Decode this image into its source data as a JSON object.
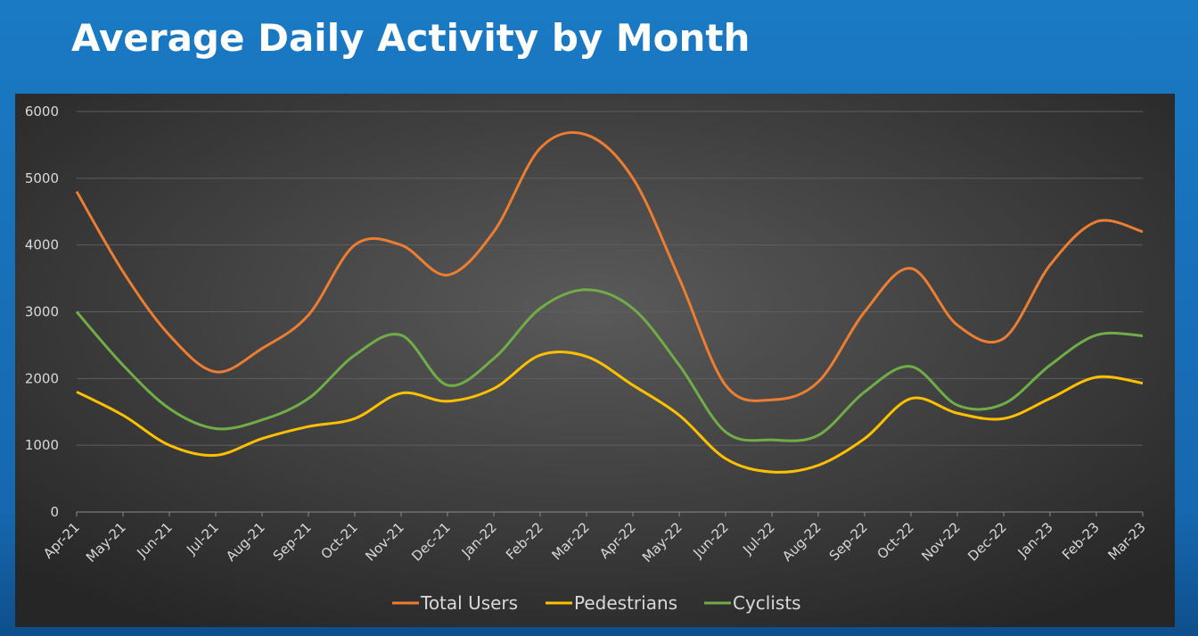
{
  "chart_data": {
    "type": "line",
    "title": "Average Daily Activity by Month",
    "categories": [
      "Apr-21",
      "May-21",
      "Jun-21",
      "Jul-21",
      "Aug-21",
      "Sep-21",
      "Oct-21",
      "Nov-21",
      "Dec-21",
      "Jan-22",
      "Feb-22",
      "Mar-22",
      "Apr-22",
      "May-22",
      "Jun-22",
      "Jul-22",
      "Aug-22",
      "Sep-22",
      "Oct-22",
      "Nov-22",
      "Dec-22",
      "Jan-23",
      "Feb-23",
      "Mar-23"
    ],
    "series": [
      {
        "name": "Total Users",
        "color": "#ed7d31",
        "values": [
          4800,
          3600,
          2650,
          2100,
          2450,
          2950,
          4000,
          4000,
          3550,
          4200,
          5450,
          5650,
          5000,
          3500,
          1900,
          1680,
          1950,
          3000,
          3650,
          2800,
          2600,
          3700,
          4350,
          4200
        ]
      },
      {
        "name": "Pedestrians",
        "color": "#ffc000",
        "values": [
          1800,
          1450,
          1000,
          850,
          1100,
          1280,
          1400,
          1780,
          1660,
          1850,
          2350,
          2330,
          1900,
          1450,
          800,
          600,
          700,
          1100,
          1700,
          1480,
          1400,
          1700,
          2020,
          1930
        ]
      },
      {
        "name": "Cyclists",
        "color": "#70ad47",
        "values": [
          3000,
          2200,
          1550,
          1250,
          1380,
          1700,
          2350,
          2650,
          1900,
          2300,
          3050,
          3330,
          3050,
          2200,
          1200,
          1080,
          1150,
          1800,
          2180,
          1600,
          1620,
          2200,
          2650,
          2640
        ]
      }
    ],
    "ylim": [
      0,
      6000
    ],
    "yticks": [
      0,
      1000,
      2000,
      3000,
      4000,
      5000,
      6000
    ],
    "grid": true
  }
}
